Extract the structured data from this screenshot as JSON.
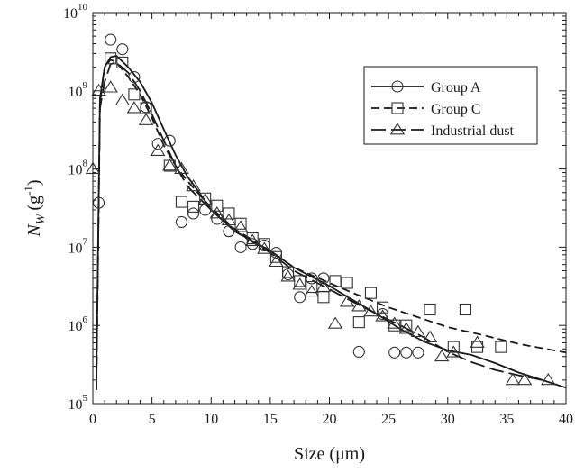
{
  "chart_data": {
    "type": "scatter",
    "title": "",
    "xlabel": "Size (μm)",
    "ylabel": "N_W (g^-1)",
    "ylabel_parts": {
      "symbol": "N",
      "subscript": "W",
      "unit_open": "(g",
      "unit_sup": "-1",
      "unit_close": ")"
    },
    "xlim": [
      0,
      40
    ],
    "ylim": [
      100000,
      10000000000
    ],
    "yscale": "log",
    "grid": false,
    "legend_position": "top-right",
    "x_ticks": [
      0,
      5,
      10,
      15,
      20,
      25,
      30,
      35,
      40
    ],
    "y_ticks": [
      {
        "value": 100000,
        "base": "10",
        "exp": "5"
      },
      {
        "value": 1000000,
        "base": "10",
        "exp": "6"
      },
      {
        "value": 10000000,
        "base": "10",
        "exp": "7"
      },
      {
        "value": 100000000,
        "base": "10",
        "exp": "8"
      },
      {
        "value": 1000000000,
        "base": "10",
        "exp": "9"
      },
      {
        "value": 10000000000,
        "base": "10",
        "exp": "10"
      }
    ],
    "series": [
      {
        "name": "Group A",
        "marker": "circle",
        "line": "solid",
        "points": [
          [
            0.5,
            37000000
          ],
          [
            1.5,
            4500000000
          ],
          [
            2.5,
            3400000000
          ],
          [
            3.5,
            1500000000
          ],
          [
            4.5,
            620000000
          ],
          [
            5.5,
            210000000
          ],
          [
            6.5,
            230000000
          ],
          [
            7.5,
            21000000
          ],
          [
            8.5,
            27000000
          ],
          [
            9.5,
            30000000
          ],
          [
            10.5,
            23000000
          ],
          [
            11.5,
            16000000
          ],
          [
            12.5,
            10000000
          ],
          [
            13.5,
            11000000
          ],
          [
            14.5,
            10500000
          ],
          [
            15.5,
            8500000
          ],
          [
            16.5,
            4500000
          ],
          [
            17.5,
            2300000
          ],
          [
            18.5,
            4000000
          ],
          [
            19.5,
            4000000
          ],
          [
            22.5,
            460000
          ],
          [
            24.5,
            1400000
          ],
          [
            25.5,
            450000
          ],
          [
            26.5,
            450000
          ],
          [
            27.5,
            450000
          ]
        ],
        "curve": [
          [
            0.3,
            200000
          ],
          [
            0.6,
            800000000
          ],
          [
            1.0,
            2000000000
          ],
          [
            1.5,
            2700000000
          ],
          [
            2.0,
            2800000000
          ],
          [
            3.0,
            2000000000
          ],
          [
            4.0,
            1300000000
          ],
          [
            5.0,
            700000000
          ],
          [
            6.0,
            320000000
          ],
          [
            7.0,
            150000000
          ],
          [
            8.0,
            80000000
          ],
          [
            9.0,
            50000000
          ],
          [
            10.0,
            30000000
          ],
          [
            12.0,
            16000000
          ],
          [
            15.0,
            9000000
          ],
          [
            17.0,
            5500000
          ],
          [
            20.0,
            3200000
          ],
          [
            22.0,
            2100000
          ],
          [
            24.0,
            1400000
          ],
          [
            26.0,
            900000
          ],
          [
            28.0,
            620000
          ],
          [
            30.0,
            480000
          ],
          [
            32.0,
            420000
          ],
          [
            34.0,
            330000
          ],
          [
            36.0,
            250000
          ],
          [
            38.0,
            200000
          ],
          [
            40.0,
            160000
          ]
        ]
      },
      {
        "name": "Group C",
        "marker": "square",
        "line": "dashed",
        "points": [
          [
            1.5,
            2600000000
          ],
          [
            2.5,
            2300000000
          ],
          [
            3.5,
            900000000
          ],
          [
            4.5,
            600000000
          ],
          [
            6.5,
            110000000
          ],
          [
            7.5,
            38000000
          ],
          [
            8.5,
            33000000
          ],
          [
            9.5,
            42000000
          ],
          [
            10.5,
            34000000
          ],
          [
            11.5,
            27000000
          ],
          [
            12.5,
            20000000
          ],
          [
            13.5,
            13000000
          ],
          [
            14.5,
            11000000
          ],
          [
            15.5,
            7500000
          ],
          [
            16.5,
            4800000
          ],
          [
            17.5,
            3700000
          ],
          [
            18.5,
            3100000
          ],
          [
            19.5,
            2300000
          ],
          [
            20.5,
            3700000
          ],
          [
            21.5,
            3500000
          ],
          [
            22.5,
            1100000
          ],
          [
            23.5,
            2600000
          ],
          [
            24.5,
            1700000
          ],
          [
            25.5,
            1000000
          ],
          [
            26.5,
            1000000
          ],
          [
            28.5,
            1600000
          ],
          [
            30.5,
            530000
          ],
          [
            31.5,
            1600000
          ],
          [
            32.5,
            530000
          ],
          [
            34.5,
            530000
          ]
        ],
        "curve": [
          [
            0.3,
            150000
          ],
          [
            0.6,
            700000000
          ],
          [
            1.0,
            2000000000
          ],
          [
            1.5,
            2500000000
          ],
          [
            2.0,
            2300000000
          ],
          [
            3.0,
            1500000000
          ],
          [
            4.0,
            900000000
          ],
          [
            5.0,
            450000000
          ],
          [
            6.0,
            200000000
          ],
          [
            7.0,
            110000000
          ],
          [
            8.0,
            70000000
          ],
          [
            10.0,
            32000000
          ],
          [
            12.0,
            17000000
          ],
          [
            15.0,
            9000000
          ],
          [
            17.0,
            5500000
          ],
          [
            20.0,
            3500000
          ],
          [
            22.0,
            2600000
          ],
          [
            25.0,
            1700000
          ],
          [
            28.0,
            1200000
          ],
          [
            30.0,
            950000
          ],
          [
            33.0,
            750000
          ],
          [
            36.0,
            580000
          ],
          [
            40.0,
            450000
          ]
        ]
      },
      {
        "name": "Industrial dust",
        "marker": "triangle",
        "line": "long-dash",
        "points": [
          [
            0.0,
            100000000
          ],
          [
            0.5,
            1000000000
          ],
          [
            1.5,
            1100000000
          ],
          [
            2.5,
            750000000
          ],
          [
            3.5,
            600000000
          ],
          [
            4.5,
            420000000
          ],
          [
            5.5,
            170000000
          ],
          [
            6.5,
            110000000
          ],
          [
            7.5,
            100000000
          ],
          [
            8.5,
            60000000
          ],
          [
            9.5,
            40000000
          ],
          [
            10.5,
            27000000
          ],
          [
            11.5,
            22000000
          ],
          [
            12.5,
            18000000
          ],
          [
            13.5,
            12000000
          ],
          [
            14.5,
            9500000
          ],
          [
            15.5,
            6500000
          ],
          [
            16.5,
            4200000
          ],
          [
            17.5,
            3300000
          ],
          [
            18.5,
            2700000
          ],
          [
            19.5,
            3100000
          ],
          [
            20.5,
            1050000
          ],
          [
            21.5,
            2000000
          ],
          [
            22.5,
            1750000
          ],
          [
            23.5,
            1500000
          ],
          [
            24.5,
            1300000
          ],
          [
            25.5,
            1050000
          ],
          [
            26.5,
            900000
          ],
          [
            27.5,
            820000
          ],
          [
            28.5,
            700000
          ],
          [
            29.5,
            400000
          ],
          [
            30.5,
            450000
          ],
          [
            32.5,
            600000
          ],
          [
            35.5,
            200000
          ],
          [
            36.5,
            200000
          ],
          [
            38.5,
            200000
          ]
        ],
        "curve": [
          [
            0.3,
            150000
          ],
          [
            0.6,
            600000000
          ],
          [
            1.0,
            1300000000
          ],
          [
            1.5,
            2200000000
          ],
          [
            2.0,
            2300000000
          ],
          [
            3.0,
            1700000000
          ],
          [
            4.0,
            1000000000
          ],
          [
            5.0,
            500000000
          ],
          [
            6.0,
            230000000
          ],
          [
            7.0,
            110000000
          ],
          [
            8.0,
            60000000
          ],
          [
            10.0,
            30000000
          ],
          [
            12.0,
            16000000
          ],
          [
            15.0,
            8500000
          ],
          [
            17.0,
            5000000
          ],
          [
            20.0,
            2900000
          ],
          [
            22.0,
            2000000
          ],
          [
            24.0,
            1400000
          ],
          [
            26.0,
            1000000
          ],
          [
            28.0,
            700000
          ],
          [
            30.0,
            460000
          ],
          [
            32.0,
            340000
          ],
          [
            34.0,
            270000
          ],
          [
            36.0,
            230000
          ],
          [
            38.0,
            200000
          ]
        ]
      }
    ]
  }
}
